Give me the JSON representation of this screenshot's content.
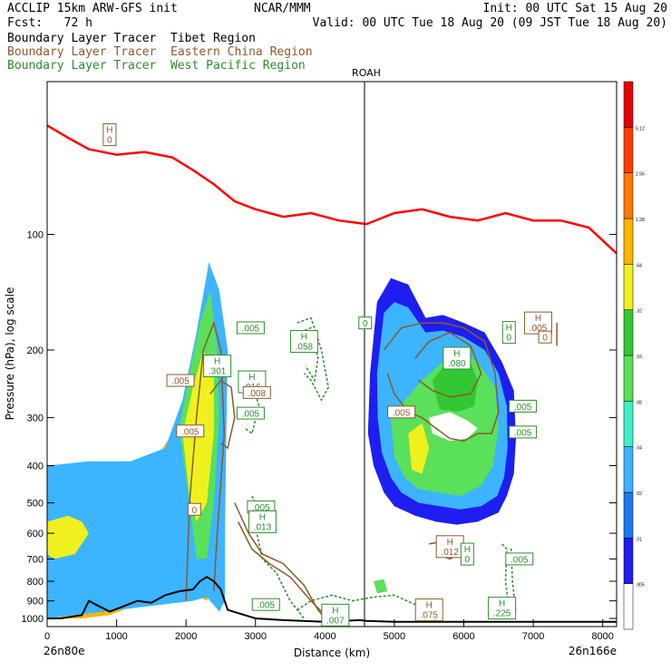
{
  "header": {
    "line1_left": "ACCLIP 15km ARW-GFS init",
    "line1_mid": "NCAR/MMM",
    "line1_right": "Init: 00 UTC Sat 15 Aug 20",
    "line2_left": "Fcst:   72 h",
    "line2_right": "Valid: 00 UTC Tue 18 Aug 20 (09 JST Tue 18 Aug 20)",
    "legend": [
      {
        "text": "Boundary Layer Tracer  Tibet Region",
        "color": "#000000"
      },
      {
        "text": "Boundary Layer Tracer  Eastern China Region",
        "color": "#8b5a2b"
      },
      {
        "text": "Boundary Layer Tracer  West Pacific Region",
        "color": "#2e8b2e"
      }
    ]
  },
  "chart_data": {
    "type": "cross-section",
    "xlabel": "Distance (km)",
    "ylabel": "Pressure (hPa), log scale",
    "xlim": [
      0,
      8200
    ],
    "ylim": [
      1050,
      40
    ],
    "x_ticks": [
      0,
      1000,
      2000,
      3000,
      4000,
      5000,
      6000,
      7000,
      8000
    ],
    "y_ticks": [
      100,
      200,
      300,
      400,
      500,
      600,
      700,
      800,
      900,
      1000
    ],
    "left_endpoint": "26n80e",
    "right_endpoint": "26n166e",
    "vertical_marker": {
      "label": "ROAH",
      "x": 4570
    },
    "colorbar": {
      "levels": [
        ".005",
        ".01",
        ".02",
        ".04",
        ".08",
        ".16",
        ".32",
        ".64",
        "1.28",
        "2.56",
        "5.12"
      ],
      "colors": [
        "#ffffff",
        "#1e1ef0",
        "#1e78f0",
        "#3cb4ff",
        "#3cf0c8",
        "#5ae05a",
        "#32c832",
        "#f0f01e",
        "#ffb400",
        "#ff7800",
        "#ff3c00",
        "#e60000"
      ]
    },
    "tropopause_line": {
      "color": "#ff0000",
      "x": [
        0,
        300,
        600,
        1000,
        1400,
        1800,
        2100,
        2400,
        2700,
        3000,
        3400,
        3800,
        4200,
        4600,
        5000,
        5400,
        5800,
        6200,
        6600,
        7000,
        7400,
        7800,
        8200
      ],
      "p": [
        52,
        56,
        60,
        62,
        61,
        63,
        68,
        74,
        82,
        86,
        90,
        88,
        92,
        94,
        88,
        86,
        90,
        92,
        88,
        92,
        92,
        96,
        112
      ]
    },
    "terrain": {
      "color": "#000000",
      "x": [
        0,
        200,
        500,
        600,
        700,
        900,
        1100,
        1300,
        1500,
        1700,
        1900,
        2100,
        2200,
        2300,
        2400,
        2500,
        2600,
        3000,
        3400,
        4000,
        4500,
        4600,
        5000,
        6000,
        7000,
        8200
      ],
      "p": [
        1000,
        1000,
        980,
        900,
        920,
        960,
        930,
        900,
        910,
        870,
        850,
        840,
        800,
        780,
        800,
        840,
        950,
        1000,
        1010,
        1020,
        1010,
        1015,
        1020,
        1020,
        1020,
        1020
      ]
    },
    "contour_labels": [
      {
        "text": "0",
        "x": 900,
        "p": 55,
        "color": "#8b5a2b",
        "high": true
      },
      {
        "text": ".005",
        "x": 2930,
        "p": 175,
        "color": "#2e8b2e",
        "high": false
      },
      {
        "text": ".058",
        "x": 3700,
        "p": 190,
        "color": "#2e8b2e",
        "high": true
      },
      {
        "text": ".301",
        "x": 2450,
        "p": 220,
        "color": "#2e8b2e",
        "high": true
      },
      {
        "text": ".005",
        "x": 1920,
        "p": 240,
        "color": "#8b5a2b",
        "high": false
      },
      {
        "text": ".016",
        "x": 2950,
        "p": 242,
        "color": "#2e8b2e",
        "high": true
      },
      {
        "text": ".008",
        "x": 3020,
        "p": 258,
        "color": "#8b5a2b",
        "high": false
      },
      {
        "text": ".005",
        "x": 2930,
        "p": 292,
        "color": "#2e8b2e",
        "high": false
      },
      {
        "text": ".005",
        "x": 2060,
        "p": 325,
        "color": "#8b5a2b",
        "high": false
      },
      {
        "text": ".005",
        "x": 3080,
        "p": 512,
        "color": "#2e8b2e",
        "high": false
      },
      {
        "text": "0",
        "x": 2120,
        "p": 520,
        "color": "#8b5a2b",
        "high": false
      },
      {
        "text": ".013",
        "x": 3100,
        "p": 560,
        "color": "#2e8b2e",
        "high": true
      },
      {
        "text": "0",
        "x": 4580,
        "p": 170,
        "color": "#2e8b2e",
        "high": false
      },
      {
        "text": ".080",
        "x": 5900,
        "p": 210,
        "color": "#2e8b2e",
        "high": true
      },
      {
        "text": ".005",
        "x": 5100,
        "p": 290,
        "color": "#8b5a2b",
        "high": false
      },
      {
        "text": ".005",
        "x": 7070,
        "p": 170,
        "color": "#8b5a2b",
        "high": true
      },
      {
        "text": "0",
        "x": 7170,
        "p": 185,
        "color": "#8b5a2b",
        "high": false
      },
      {
        "text": "0",
        "x": 6650,
        "p": 180,
        "color": "#2e8b2e",
        "high": true
      },
      {
        "text": ".005",
        "x": 6850,
        "p": 280,
        "color": "#2e8b2e",
        "high": false
      },
      {
        "text": ".005",
        "x": 6850,
        "p": 327,
        "color": "#2e8b2e",
        "high": false
      },
      {
        "text": ".012",
        "x": 5800,
        "p": 650,
        "color": "#8b5a2b",
        "high": true
      },
      {
        "text": "0",
        "x": 6050,
        "p": 680,
        "color": "#2e8b2e",
        "high": true
      },
      {
        "text": ".005",
        "x": 6800,
        "p": 700,
        "color": "#2e8b2e",
        "high": false
      },
      {
        "text": ".005",
        "x": 3150,
        "p": 920,
        "color": "#2e8b2e",
        "high": false
      },
      {
        "text": ".007",
        "x": 4150,
        "p": 980,
        "color": "#2e8b2e",
        "high": true
      },
      {
        "text": ".075",
        "x": 5500,
        "p": 950,
        "color": "#8b5a2b",
        "high": true
      },
      {
        "text": ".225",
        "x": 6550,
        "p": 940,
        "color": "#2e8b2e",
        "high": true
      }
    ]
  }
}
